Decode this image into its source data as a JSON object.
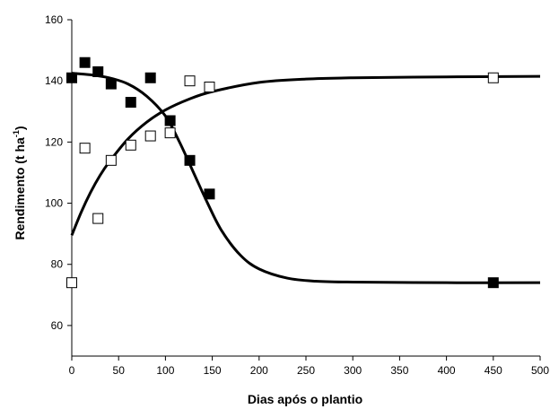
{
  "chart_data": {
    "type": "scatter",
    "xlabel": "Dias após o plantio",
    "ylabel_main": "Rendimento (t ha",
    "ylabel_sup": "-1",
    "ylabel_end": ")",
    "xlim": [
      0,
      500
    ],
    "ylim": [
      50,
      160
    ],
    "xticks": [
      0,
      50,
      100,
      150,
      200,
      250,
      300,
      350,
      400,
      450,
      500
    ],
    "yticks": [
      60,
      80,
      100,
      120,
      140,
      160
    ],
    "grid": false,
    "series": [
      {
        "marker": "filled-square",
        "points": [
          {
            "x": 0,
            "y": 141
          },
          {
            "x": 14,
            "y": 146
          },
          {
            "x": 28,
            "y": 143
          },
          {
            "x": 42,
            "y": 139
          },
          {
            "x": 63,
            "y": 133
          },
          {
            "x": 84,
            "y": 141
          },
          {
            "x": 105,
            "y": 127
          },
          {
            "x": 126,
            "y": 114
          },
          {
            "x": 147,
            "y": 103
          },
          {
            "x": 450,
            "y": 74
          }
        ],
        "fit_curve": [
          {
            "x": 0,
            "y": 142.5
          },
          {
            "x": 20,
            "y": 142
          },
          {
            "x": 40,
            "y": 141
          },
          {
            "x": 60,
            "y": 139
          },
          {
            "x": 80,
            "y": 135
          },
          {
            "x": 100,
            "y": 128.5
          },
          {
            "x": 115,
            "y": 120
          },
          {
            "x": 130,
            "y": 110
          },
          {
            "x": 145,
            "y": 100
          },
          {
            "x": 160,
            "y": 91
          },
          {
            "x": 180,
            "y": 83
          },
          {
            "x": 200,
            "y": 78.5
          },
          {
            "x": 230,
            "y": 75.5
          },
          {
            "x": 260,
            "y": 74.5
          },
          {
            "x": 300,
            "y": 74.2
          },
          {
            "x": 400,
            "y": 74
          },
          {
            "x": 500,
            "y": 74
          }
        ]
      },
      {
        "marker": "open-square",
        "points": [
          {
            "x": 0,
            "y": 74
          },
          {
            "x": 14,
            "y": 118
          },
          {
            "x": 28,
            "y": 95
          },
          {
            "x": 42,
            "y": 114
          },
          {
            "x": 63,
            "y": 119
          },
          {
            "x": 84,
            "y": 122
          },
          {
            "x": 105,
            "y": 123
          },
          {
            "x": 126,
            "y": 140
          },
          {
            "x": 147,
            "y": 138
          },
          {
            "x": 450,
            "y": 141
          }
        ],
        "fit_curve": [
          {
            "x": 0,
            "y": 89.5
          },
          {
            "x": 10,
            "y": 97
          },
          {
            "x": 20,
            "y": 103.5
          },
          {
            "x": 30,
            "y": 109
          },
          {
            "x": 40,
            "y": 113.5
          },
          {
            "x": 60,
            "y": 121
          },
          {
            "x": 80,
            "y": 126.5
          },
          {
            "x": 100,
            "y": 130.5
          },
          {
            "x": 125,
            "y": 134
          },
          {
            "x": 150,
            "y": 136.5
          },
          {
            "x": 200,
            "y": 139.5
          },
          {
            "x": 250,
            "y": 140.6
          },
          {
            "x": 300,
            "y": 141
          },
          {
            "x": 400,
            "y": 141.3
          },
          {
            "x": 500,
            "y": 141.5
          }
        ]
      }
    ]
  }
}
